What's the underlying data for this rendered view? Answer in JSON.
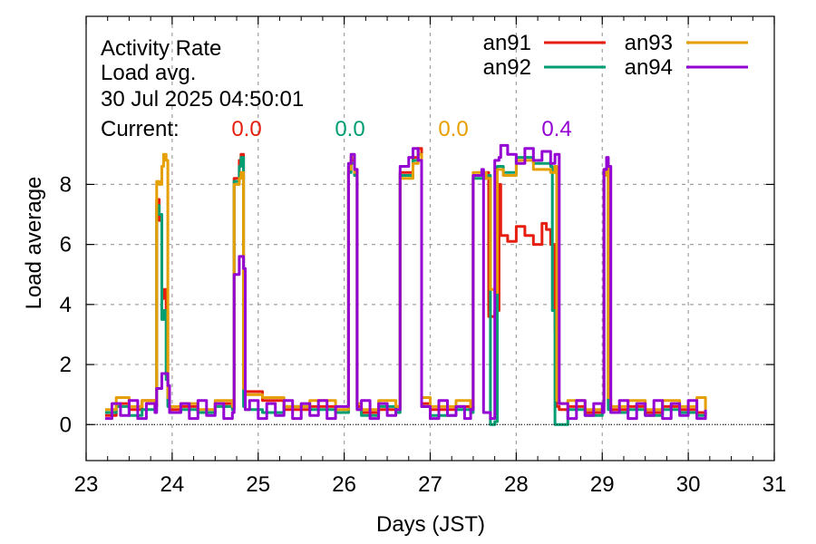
{
  "chart_data": {
    "type": "line",
    "title_lines": [
      "Activity Rate",
      "Load avg.",
      "30 Jul 2025 04:50:01"
    ],
    "current_label": "Current:",
    "xlabel": "Days (JST)",
    "ylabel": "Load average",
    "xlim": [
      23,
      31
    ],
    "ylim": [
      -1.2,
      13.6
    ],
    "x_ticks": [
      23,
      24,
      25,
      26,
      27,
      28,
      29,
      30,
      31
    ],
    "y_ticks": [
      0,
      2,
      4,
      6,
      8
    ],
    "grid": true,
    "legend_position": "top-right",
    "series": [
      {
        "name": "an91",
        "color": "#e51e10",
        "current": "0.0",
        "segments": [
          {
            "x": [
              23.22,
              23.35,
              23.5,
              23.65,
              23.8,
              23.82,
              23.85,
              23.88,
              23.9,
              23.93,
              23.95,
              23.97,
              24.1,
              24.3,
              24.5,
              24.7,
              24.72,
              24.78,
              24.8,
              24.83,
              24.85,
              25.05,
              25.3,
              25.6,
              25.9,
              26.05,
              26.08,
              26.12,
              26.15,
              26.2,
              26.4,
              26.6,
              26.65,
              26.8,
              26.86,
              26.9,
              27.0,
              27.3,
              27.47,
              27.5,
              27.65,
              27.68,
              27.75,
              27.8,
              27.82,
              27.9,
              28.0,
              28.1,
              28.2,
              28.3,
              28.35,
              28.4,
              28.45,
              28.47,
              28.5,
              28.6,
              28.8,
              29.0,
              29.02,
              29.05,
              29.07,
              29.1,
              29.3,
              29.5,
              29.7,
              29.9,
              30.1,
              30.2
            ],
            "y": [
              0.3,
              0.7,
              0.5,
              0.8,
              0.6,
              7.5,
              6.8,
              4.2,
              4.5,
              3.8,
              0.8,
              0.5,
              0.6,
              0.4,
              0.7,
              0.5,
              8.2,
              8.8,
              9.0,
              1.5,
              1.1,
              0.8,
              0.5,
              0.6,
              0.4,
              8.6,
              8.8,
              8.5,
              0.6,
              0.4,
              0.5,
              0.6,
              8.4,
              8.9,
              9.2,
              0.7,
              0.5,
              0.6,
              0.5,
              8.3,
              8.4,
              3.6,
              3.8,
              8.0,
              6.3,
              6.1,
              6.6,
              6.3,
              6.0,
              6.7,
              6.5,
              6.0,
              3.1,
              0.6,
              0.5,
              0.6,
              0.4,
              0.5,
              8.5,
              8.7,
              0.7,
              0.5,
              0.6,
              0.4,
              0.6,
              0.5,
              0.4,
              0.3
            ]
          }
        ]
      },
      {
        "name": "an92",
        "color": "#009e73",
        "current": "0.0",
        "segments": [
          {
            "x": [
              23.22,
              23.35,
              23.5,
              23.65,
              23.8,
              23.82,
              23.85,
              23.88,
              23.9,
              23.93,
              23.95,
              23.97,
              24.1,
              24.3,
              24.5,
              24.7,
              24.72,
              24.78,
              24.8,
              24.83,
              24.85,
              25.05,
              25.3,
              25.6,
              25.9,
              26.05,
              26.08,
              26.12,
              26.15,
              26.2,
              26.4,
              26.6,
              26.65,
              26.8,
              26.86,
              26.9,
              27.0,
              27.3,
              27.47,
              27.5,
              27.65,
              27.7,
              27.75,
              27.78,
              27.85,
              28.0,
              28.2,
              28.4,
              28.42,
              28.45,
              28.5,
              28.6,
              28.8,
              29.0,
              29.02,
              29.05,
              29.07,
              29.1,
              29.3,
              29.5,
              29.7,
              29.9,
              30.1,
              30.2
            ],
            "y": [
              0.4,
              0.6,
              0.3,
              0.5,
              0.6,
              7.3,
              7.0,
              3.5,
              3.8,
              1.5,
              0.6,
              0.4,
              0.5,
              0.4,
              0.6,
              0.5,
              8.1,
              8.6,
              8.9,
              0.6,
              0.5,
              0.4,
              0.6,
              0.5,
              0.4,
              8.4,
              8.7,
              8.3,
              0.5,
              0.3,
              0.6,
              0.4,
              8.3,
              8.8,
              9.0,
              0.6,
              0.3,
              0.5,
              0.4,
              8.2,
              8.3,
              0.0,
              0.1,
              8.6,
              8.4,
              8.9,
              8.7,
              8.6,
              3.8,
              0.0,
              0.0,
              0.5,
              0.3,
              0.6,
              8.4,
              8.6,
              0.5,
              0.4,
              0.5,
              0.3,
              0.5,
              0.4,
              0.3,
              0.3
            ]
          }
        ]
      },
      {
        "name": "an93",
        "color": "#e69f00",
        "current": "0.0",
        "segments": [
          {
            "x": [
              23.22,
              23.35,
              23.5,
              23.65,
              23.8,
              23.82,
              23.85,
              23.88,
              23.9,
              23.93,
              23.95,
              23.97,
              24.1,
              24.3,
              24.5,
              24.7,
              24.72,
              24.78,
              24.8,
              24.83,
              24.85,
              25.05,
              25.3,
              25.6,
              25.9,
              26.05,
              26.08,
              26.12,
              26.15,
              26.2,
              26.4,
              26.6,
              26.65,
              26.8,
              26.86,
              26.9,
              27.0,
              27.3,
              27.47,
              27.5,
              27.65,
              27.7,
              27.75,
              27.78,
              27.85,
              28.0,
              28.2,
              28.4,
              28.45,
              28.47,
              28.5,
              28.6,
              28.8,
              29.0,
              29.02,
              29.05,
              29.07,
              29.1,
              29.3,
              29.5,
              29.7,
              29.9,
              30.1,
              30.2
            ],
            "y": [
              0.5,
              0.9,
              0.6,
              0.8,
              0.7,
              8.1,
              8.0,
              8.6,
              9.0,
              8.8,
              0.9,
              0.6,
              0.7,
              0.5,
              0.8,
              0.6,
              8.0,
              8.2,
              8.4,
              1.2,
              1.0,
              0.9,
              0.6,
              0.8,
              0.5,
              8.5,
              8.9,
              8.4,
              0.7,
              0.5,
              0.8,
              0.6,
              8.2,
              8.7,
              9.0,
              0.9,
              0.6,
              0.8,
              0.6,
              8.4,
              8.2,
              4.5,
              4.4,
              8.5,
              8.3,
              8.8,
              8.5,
              8.4,
              8.6,
              0.8,
              0.7,
              0.8,
              0.5,
              0.7,
              8.3,
              8.8,
              0.9,
              0.6,
              0.8,
              0.5,
              0.8,
              0.6,
              0.9,
              0.5
            ]
          }
        ]
      },
      {
        "name": "an94",
        "color": "#9400d3",
        "current": "0.4",
        "segments": [
          {
            "x": [
              23.22,
              23.3,
              23.4,
              23.5,
              23.6,
              23.7,
              23.8,
              23.82,
              23.88,
              23.95,
              23.97,
              24.1,
              24.2,
              24.3,
              24.4,
              24.5,
              24.6,
              24.7,
              24.72,
              24.78,
              24.83,
              24.85,
              24.9,
              25.0,
              25.1,
              25.2,
              25.3,
              25.4,
              25.5,
              25.6,
              25.7,
              25.8,
              25.9,
              26.05,
              26.08,
              26.12,
              26.15,
              26.2,
              26.3,
              26.4,
              26.5,
              26.6,
              26.65,
              26.75,
              26.8,
              26.86,
              26.9,
              27.0,
              27.1,
              27.2,
              27.3,
              27.4,
              27.47,
              27.5,
              27.6,
              27.62,
              27.7,
              27.75,
              27.8,
              27.82,
              27.9,
              28.0,
              28.1,
              28.2,
              28.3,
              28.4,
              28.45,
              28.5,
              28.6,
              28.7,
              28.8,
              28.9,
              29.0,
              29.02,
              29.05,
              29.07,
              29.1,
              29.2,
              29.3,
              29.4,
              29.5,
              29.6,
              29.7,
              29.8,
              29.9,
              30.0,
              30.1,
              30.2
            ],
            "y": [
              0.2,
              0.7,
              0.3,
              0.8,
              0.2,
              0.7,
              0.4,
              1.2,
              1.7,
              1.3,
              0.4,
              0.7,
              0.2,
              0.8,
              0.3,
              0.7,
              0.2,
              0.4,
              5.0,
              5.6,
              5.2,
              0.5,
              0.8,
              0.2,
              0.7,
              0.3,
              0.8,
              0.2,
              0.7,
              0.3,
              0.8,
              0.2,
              0.6,
              8.7,
              9.0,
              8.5,
              0.5,
              0.8,
              0.2,
              0.7,
              0.3,
              0.5,
              8.6,
              8.9,
              9.2,
              8.8,
              0.6,
              0.2,
              0.8,
              0.3,
              0.6,
              0.2,
              0.5,
              8.3,
              8.5,
              0.4,
              0.2,
              8.8,
              8.9,
              9.3,
              9.0,
              8.7,
              9.2,
              8.8,
              9.1,
              8.7,
              9.0,
              0.7,
              0.2,
              0.8,
              0.3,
              0.7,
              0.4,
              8.5,
              8.9,
              8.6,
              0.4,
              0.8,
              0.2,
              0.7,
              0.3,
              0.8,
              0.2,
              0.7,
              0.3,
              0.8,
              0.2,
              0.5
            ]
          }
        ]
      }
    ]
  }
}
